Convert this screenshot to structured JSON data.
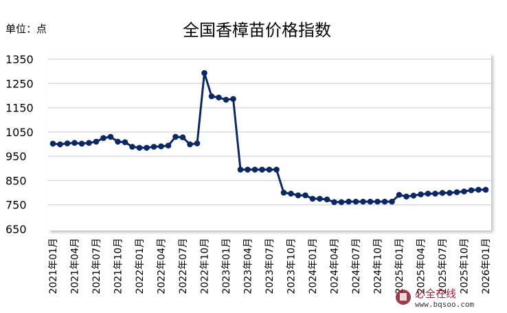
{
  "chart_data": {
    "type": "line",
    "title": "全国香樟苗价格指数",
    "unit_label": "单位：点",
    "ylim": [
      650,
      1350
    ],
    "yticks": [
      650,
      750,
      850,
      950,
      1050,
      1150,
      1250,
      1350
    ],
    "grid": true,
    "legend": "none",
    "line_color": "#0b2864",
    "x_tick_labels": [
      "2021年01月",
      "2021年04月",
      "2021年07月",
      "2021年10月",
      "2022年01月",
      "2022年04月",
      "2022年07月",
      "2022年10月",
      "2023年01月",
      "2023年04月",
      "2023年07月",
      "2023年10月",
      "2024年01月",
      "2024年04月",
      "2024年07月",
      "2024年10月",
      "2025年01月",
      "2025年04月",
      "2025年07月",
      "2025年10月",
      "2026年01月"
    ],
    "x_start": "2021-01",
    "x_end": "2026-01",
    "values": [
      1002,
      999,
      1003,
      1005,
      1002,
      1005,
      1010,
      1025,
      1030,
      1010,
      1008,
      989,
      985,
      985,
      989,
      991,
      994,
      1030,
      1028,
      999,
      1003,
      1293,
      1197,
      1192,
      1183,
      1186,
      895,
      895,
      895,
      895,
      895,
      895,
      800,
      796,
      789,
      789,
      775,
      775,
      772,
      761,
      761,
      763,
      763,
      763,
      763,
      763,
      763,
      763,
      791,
      784,
      788,
      793,
      796,
      796,
      799,
      799,
      802,
      805,
      810,
      812,
      812
    ]
  },
  "watermark": {
    "brand": "必全在线",
    "url": "www.bqsoo.com"
  }
}
